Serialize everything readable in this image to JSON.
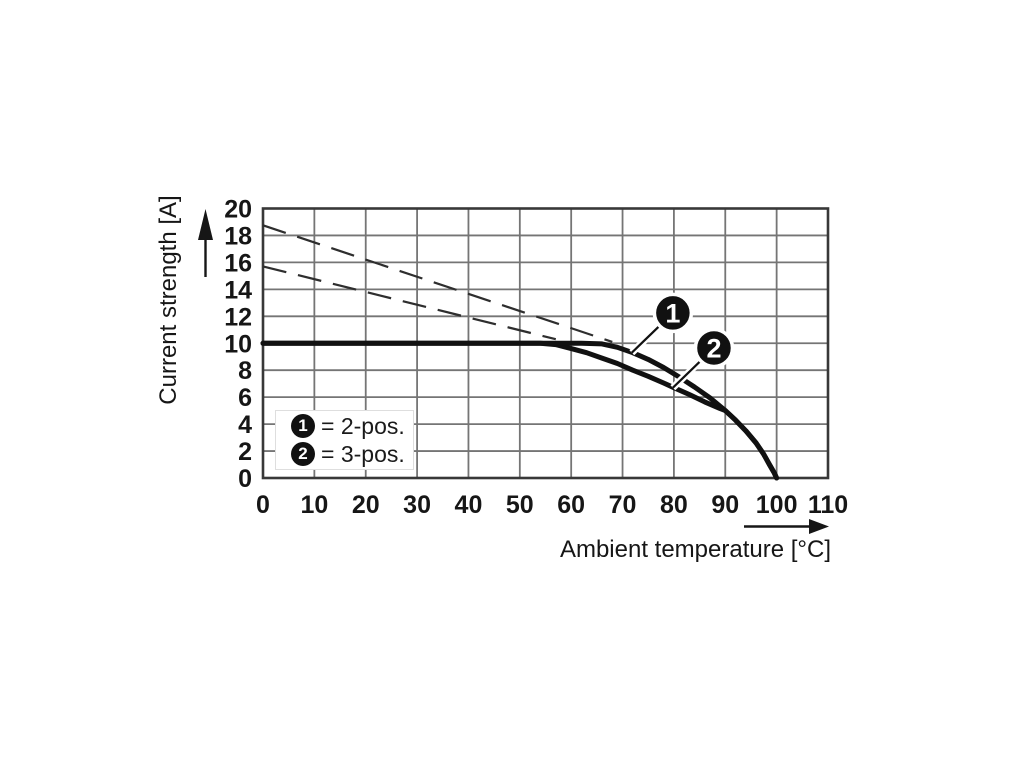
{
  "colors": {
    "background": "#ffffff",
    "grid": "#757575",
    "border": "#383838",
    "curve": "#111111",
    "dashed": "#2e2e2e",
    "text": "#161616",
    "callout_fill": "#111111",
    "callout_text": "#ffffff"
  },
  "chart_data": {
    "type": "line",
    "title": "",
    "xlabel": "Ambient temperature [°C]",
    "ylabel": "Current strength [A]",
    "xlim": [
      0,
      110
    ],
    "ylim": [
      0,
      20
    ],
    "xticks": [
      0,
      10,
      20,
      30,
      40,
      50,
      60,
      70,
      80,
      90,
      100,
      110
    ],
    "yticks": [
      0,
      2,
      4,
      6,
      8,
      10,
      12,
      14,
      16,
      18,
      20
    ],
    "grid": true,
    "legend": {
      "position": "inside-bottom-left",
      "items": [
        {
          "symbol": "1",
          "label": "= 2-pos."
        },
        {
          "symbol": "2",
          "label": "= 3-pos."
        }
      ]
    },
    "series": [
      {
        "id": "dashed-2pos",
        "name": "2-pos. (dashed)",
        "style": "dashed",
        "points": [
          [
            0,
            18.75
          ],
          [
            68,
            10.1
          ]
        ]
      },
      {
        "id": "dashed-3pos",
        "name": "3-pos. (dashed)",
        "style": "dashed",
        "points": [
          [
            0,
            15.7
          ],
          [
            57,
            10.3
          ]
        ]
      },
      {
        "id": "curve-3pos",
        "name": "3-pos.",
        "style": "solid",
        "points": [
          [
            0,
            10
          ],
          [
            44,
            10
          ],
          [
            54,
            10
          ],
          [
            57,
            9.9
          ],
          [
            60,
            9.6
          ],
          [
            63,
            9.3
          ],
          [
            66,
            8.9
          ],
          [
            69,
            8.5
          ],
          [
            72,
            8.0
          ],
          [
            75,
            7.55
          ],
          [
            78,
            7.05
          ],
          [
            80,
            6.7
          ],
          [
            83,
            6.2
          ],
          [
            86,
            5.65
          ],
          [
            89,
            5.15
          ],
          [
            90,
            5.0
          ],
          [
            92,
            4.3
          ],
          [
            94,
            3.5
          ],
          [
            96,
            2.6
          ],
          [
            97.5,
            1.75
          ],
          [
            98.6,
            1.0
          ],
          [
            99.5,
            0.4
          ],
          [
            100,
            0
          ]
        ]
      },
      {
        "id": "curve-2pos",
        "name": "2-pos.",
        "style": "solid",
        "points": [
          [
            0,
            10
          ],
          [
            40,
            10
          ],
          [
            55,
            10
          ],
          [
            62,
            10
          ],
          [
            66,
            9.95
          ],
          [
            69,
            9.7
          ],
          [
            72,
            9.3
          ],
          [
            75,
            8.8
          ],
          [
            78,
            8.2
          ],
          [
            81,
            7.5
          ],
          [
            84,
            6.75
          ],
          [
            87,
            5.95
          ],
          [
            90,
            5.0
          ],
          [
            92,
            4.3
          ],
          [
            94,
            3.5
          ],
          [
            96,
            2.6
          ],
          [
            97.5,
            1.75
          ],
          [
            98.6,
            1.0
          ],
          [
            99.5,
            0.4
          ],
          [
            100,
            0
          ]
        ]
      }
    ],
    "callouts": [
      {
        "symbol": "1",
        "circle": [
          79.8,
          12.25
        ],
        "target": [
          71.8,
          9.3
        ]
      },
      {
        "symbol": "2",
        "circle": [
          87.8,
          9.65
        ],
        "target": [
          79.8,
          6.7
        ]
      }
    ]
  }
}
